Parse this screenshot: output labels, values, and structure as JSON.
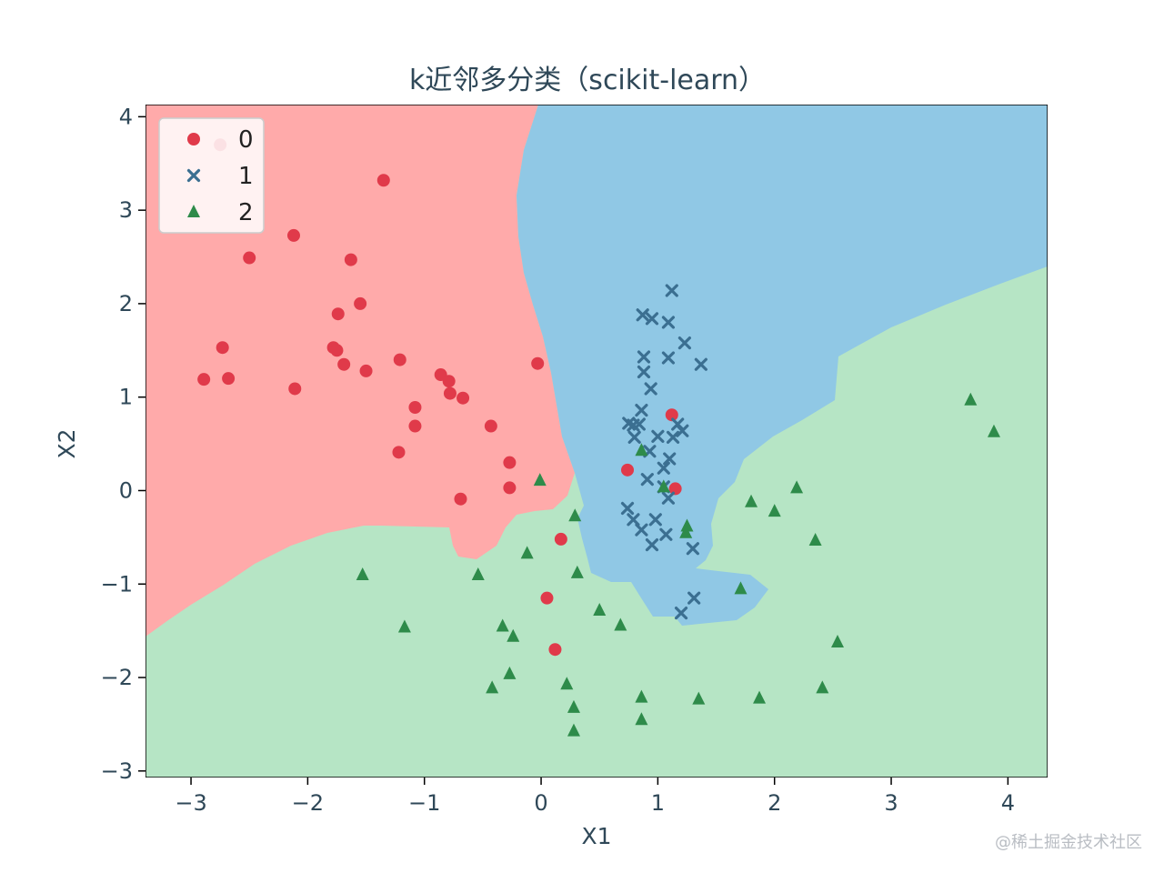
{
  "chart_data": {
    "type": "scatter",
    "title": "k近邻多分类（scikit-learn）",
    "xlabel": "X1",
    "ylabel": "X2",
    "xlim": [
      -3.39,
      4.34
    ],
    "ylim": [
      -3.07,
      4.13
    ],
    "xticks": [
      -3,
      -2,
      -1,
      0,
      1,
      2,
      3,
      4
    ],
    "yticks": [
      -3,
      -2,
      -1,
      0,
      1,
      2,
      3,
      4
    ],
    "xtick_labels": [
      "−3",
      "−2",
      "−1",
      "0",
      "1",
      "2",
      "3",
      "4"
    ],
    "ytick_labels": [
      "−3",
      "−2",
      "−1",
      "0",
      "1",
      "2",
      "3",
      "4"
    ],
    "legend_position": "upper-left",
    "grid": false,
    "decision_regions": [
      {
        "class": "0",
        "color": "#ffaaaa"
      },
      {
        "class": "1",
        "color": "#90c8e5"
      },
      {
        "class": "2",
        "color": "#b6e5c5"
      }
    ],
    "series": [
      {
        "name": "0",
        "marker": "circle",
        "color": "#e03a4a",
        "points": [
          [
            -2.75,
            3.7
          ],
          [
            -1.35,
            3.32
          ],
          [
            -2.12,
            2.73
          ],
          [
            -2.5,
            2.49
          ],
          [
            -1.63,
            2.47
          ],
          [
            -1.55,
            2.0
          ],
          [
            -1.74,
            1.89
          ],
          [
            -2.73,
            1.53
          ],
          [
            -1.78,
            1.53
          ],
          [
            -1.75,
            1.5
          ],
          [
            -1.69,
            1.35
          ],
          [
            -1.5,
            1.28
          ],
          [
            -2.89,
            1.19
          ],
          [
            -2.68,
            1.2
          ],
          [
            -2.11,
            1.09
          ],
          [
            -1.21,
            1.4
          ],
          [
            -0.86,
            1.24
          ],
          [
            -0.79,
            1.17
          ],
          [
            -0.78,
            1.04
          ],
          [
            -0.67,
            0.99
          ],
          [
            -1.08,
            0.89
          ],
          [
            -1.08,
            0.69
          ],
          [
            -0.43,
            0.69
          ],
          [
            -0.03,
            1.36
          ],
          [
            -1.22,
            0.41
          ],
          [
            -0.27,
            0.3
          ],
          [
            -0.27,
            0.03
          ],
          [
            -0.69,
            -0.09
          ],
          [
            0.74,
            0.22
          ],
          [
            1.12,
            0.81
          ],
          [
            1.15,
            0.02
          ],
          [
            0.17,
            -0.52
          ],
          [
            0.05,
            -1.15
          ],
          [
            0.12,
            -1.7
          ]
        ]
      },
      {
        "name": "1",
        "marker": "x",
        "color": "#3b6f91",
        "points": [
          [
            1.12,
            2.14
          ],
          [
            0.87,
            1.88
          ],
          [
            0.95,
            1.84
          ],
          [
            1.09,
            1.8
          ],
          [
            1.23,
            1.58
          ],
          [
            0.88,
            1.43
          ],
          [
            1.09,
            1.42
          ],
          [
            1.37,
            1.35
          ],
          [
            0.88,
            1.27
          ],
          [
            0.94,
            1.09
          ],
          [
            0.86,
            0.86
          ],
          [
            0.75,
            0.72
          ],
          [
            0.79,
            0.7
          ],
          [
            0.84,
            0.71
          ],
          [
            1.17,
            0.71
          ],
          [
            1.21,
            0.64
          ],
          [
            0.8,
            0.57
          ],
          [
            0.93,
            0.42
          ],
          [
            1.0,
            0.58
          ],
          [
            1.13,
            0.57
          ],
          [
            1.1,
            0.34
          ],
          [
            1.05,
            0.24
          ],
          [
            0.91,
            0.12
          ],
          [
            1.05,
            0.04
          ],
          [
            1.09,
            -0.08
          ],
          [
            0.74,
            -0.19
          ],
          [
            0.79,
            -0.31
          ],
          [
            0.86,
            -0.42
          ],
          [
            0.98,
            -0.31
          ],
          [
            1.07,
            -0.47
          ],
          [
            0.95,
            -0.58
          ],
          [
            1.3,
            -0.62
          ],
          [
            1.31,
            -1.15
          ],
          [
            1.2,
            -1.31
          ]
        ]
      },
      {
        "name": "2",
        "marker": "triangle",
        "color": "#2e8b4a",
        "points": [
          [
            3.68,
            0.97
          ],
          [
            3.88,
            0.63
          ],
          [
            0.86,
            0.43
          ],
          [
            -0.01,
            0.11
          ],
          [
            1.05,
            0.04
          ],
          [
            2.19,
            0.03
          ],
          [
            1.8,
            -0.12
          ],
          [
            2.0,
            -0.22
          ],
          [
            0.29,
            -0.27
          ],
          [
            1.25,
            -0.38
          ],
          [
            1.24,
            -0.45
          ],
          [
            2.35,
            -0.53
          ],
          [
            -0.12,
            -0.67
          ],
          [
            -0.54,
            -0.9
          ],
          [
            0.31,
            -0.88
          ],
          [
            -1.53,
            -0.9
          ],
          [
            1.71,
            -1.05
          ],
          [
            0.5,
            -1.28
          ],
          [
            0.68,
            -1.44
          ],
          [
            -1.17,
            -1.46
          ],
          [
            -0.33,
            -1.45
          ],
          [
            -0.24,
            -1.56
          ],
          [
            2.54,
            -1.62
          ],
          [
            -0.27,
            -1.96
          ],
          [
            -0.42,
            -2.11
          ],
          [
            0.22,
            -2.07
          ],
          [
            0.86,
            -2.21
          ],
          [
            1.35,
            -2.23
          ],
          [
            1.87,
            -2.22
          ],
          [
            2.41,
            -2.11
          ],
          [
            0.28,
            -2.32
          ],
          [
            0.86,
            -2.45
          ],
          [
            0.28,
            -2.57
          ]
        ]
      }
    ]
  },
  "watermark": "@稀土掘金技术社区"
}
